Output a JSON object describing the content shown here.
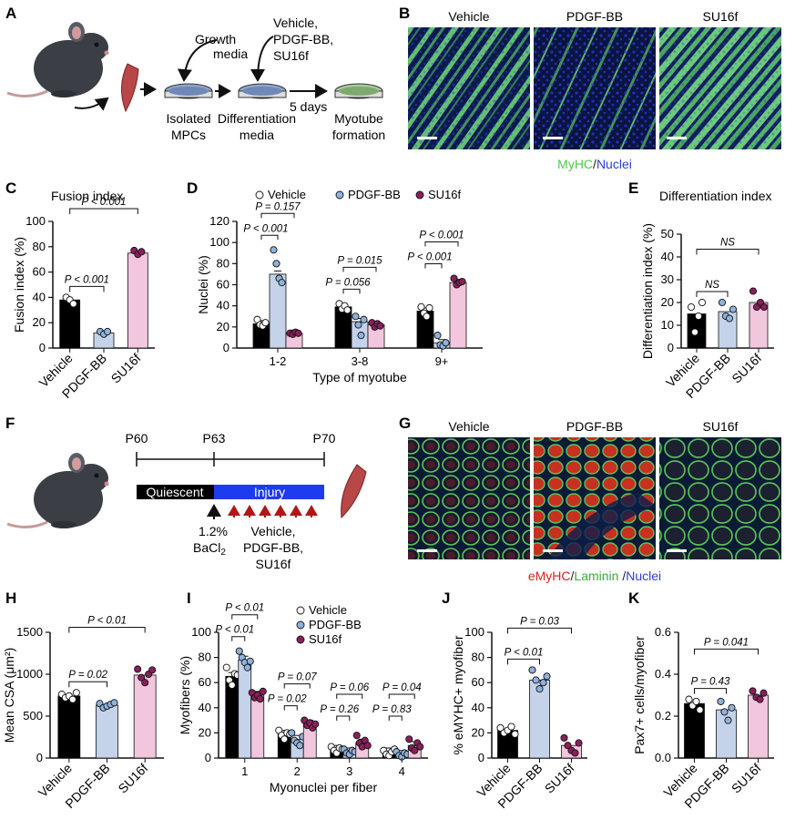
{
  "panels": {
    "A": {
      "letter": "A",
      "growth_media": "Growth media",
      "treatments": [
        "Vehicle,",
        "PDGF-BB,",
        "SU16f"
      ],
      "isolated": [
        "Isolated",
        "MPCs"
      ],
      "differentiation": [
        "Differentiation",
        "media"
      ],
      "days": "5 days",
      "myotube": [
        "Myotube",
        "formation"
      ]
    },
    "B": {
      "letter": "B",
      "image_titles": [
        "Vehicle",
        "PDGF-BB",
        "SU16f"
      ],
      "caption_parts": [
        "MyHC",
        "/",
        "Nuclei"
      ],
      "caption_colors": [
        "#4fc94f",
        "#222222",
        "#2b3fd6"
      ]
    },
    "F": {
      "letter": "F",
      "timepoints": [
        "P60",
        "P63",
        "P70"
      ],
      "quiescent": "Quiescent",
      "injury": "Injury",
      "bacl2": [
        "1.2%",
        "BaCl"
      ],
      "bacl2_sub": "2",
      "treatments": [
        "Vehicle,",
        "PDGF-BB,",
        "SU16f"
      ]
    },
    "G": {
      "letter": "G",
      "image_titles": [
        "Vehicle",
        "PDGF-BB",
        "SU16f"
      ],
      "caption_parts": [
        "eMyHC",
        "/",
        "Laminin",
        " /",
        "Nuclei"
      ],
      "caption_colors": [
        "#e02020",
        "#222222",
        "#3aaa3a",
        "#222222",
        "#2b3fd6"
      ]
    }
  },
  "colors": {
    "vehicle": "#000000",
    "pdgf": "#c5d3ea",
    "su16f": "#f2c6dc",
    "dot_vehicle": "#ffffff",
    "dot_pdgf": "#8fb2dc",
    "dot_su16f": "#8a1f5c"
  },
  "chart_data": [
    {
      "id": "C",
      "letter": "C",
      "type": "bar",
      "title": "Fusion index",
      "ylabel": "Fusion index (%)",
      "ylim": [
        0,
        100
      ],
      "yticks": [
        0,
        20,
        40,
        60,
        80,
        100
      ],
      "categories": [
        "Vehicle",
        "PDGF-BB",
        "SU16f"
      ],
      "values": [
        38,
        12,
        75
      ],
      "points": [
        [
          40,
          38,
          35
        ],
        [
          13,
          11,
          13
        ],
        [
          77,
          74,
          76
        ]
      ],
      "comparisons": [
        {
          "from": 0,
          "to": 1,
          "label": "P < 0.001"
        },
        {
          "from": 0,
          "to": 2,
          "label": "P < 0.001"
        }
      ]
    },
    {
      "id": "D",
      "letter": "D",
      "type": "bar",
      "ylabel": "Nuclei (%)",
      "xlabel": "Type of myotube",
      "ylim": [
        0,
        120
      ],
      "yticks": [
        0,
        20,
        40,
        60,
        80,
        100,
        120
      ],
      "categories": [
        "1-2",
        "3-8",
        "9+"
      ],
      "legend": [
        "Vehicle",
        "PDGF-BB",
        "SU16f"
      ],
      "series": [
        {
          "name": "Vehicle",
          "values": [
            23,
            39,
            35
          ],
          "points": [
            [
              27,
              22,
              21,
              24
            ],
            [
              42,
              37,
              40,
              36
            ],
            [
              39,
              33,
              30,
              38
            ]
          ]
        },
        {
          "name": "PDGF-BB",
          "values": [
            70,
            25,
            5
          ],
          "points": [
            [
              93,
              80,
              66,
              62
            ],
            [
              30,
              22,
              12,
              27
            ],
            [
              12,
              3,
              2,
              5
            ]
          ]
        },
        {
          "name": "SU16f",
          "values": [
            14,
            22,
            62
          ],
          "points": [
            [
              14,
              13,
              15,
              14
            ],
            [
              24,
              20,
              23,
              21
            ],
            [
              66,
              60,
              62,
              63
            ]
          ]
        }
      ],
      "comparisons": [
        {
          "group": 0,
          "from": 0,
          "to": 1,
          "label": "P < 0.001"
        },
        {
          "group": 0,
          "from": 0,
          "to": 2,
          "label": "P = 0.157"
        },
        {
          "group": 1,
          "from": 0,
          "to": 1,
          "label": "P = 0.056"
        },
        {
          "group": 1,
          "from": 0,
          "to": 2,
          "label": "P = 0.015"
        },
        {
          "group": 2,
          "from": 0,
          "to": 1,
          "label": "P < 0.001"
        },
        {
          "group": 2,
          "from": 0,
          "to": 2,
          "label": "P < 0.001"
        }
      ]
    },
    {
      "id": "E",
      "letter": "E",
      "type": "bar",
      "title": "Differentiation index",
      "ylabel": "Differentiation index (%)",
      "ylim": [
        0,
        50
      ],
      "yticks": [
        0,
        10,
        20,
        30,
        40,
        50
      ],
      "categories": [
        "Vehicle",
        "PDGF-BB",
        "SU16f"
      ],
      "values": [
        15,
        16,
        20
      ],
      "points": [
        [
          18,
          7,
          14,
          20
        ],
        [
          20,
          14,
          13,
          17
        ],
        [
          25,
          18,
          20,
          18
        ]
      ],
      "comparisons": [
        {
          "from": 0,
          "to": 1,
          "label": "NS"
        },
        {
          "from": 0,
          "to": 2,
          "label": "NS"
        }
      ]
    },
    {
      "id": "H",
      "letter": "H",
      "type": "bar",
      "ylabel": "Mean CSA (μm²)",
      "ylim": [
        0,
        1500
      ],
      "yticks": [
        0,
        500,
        1000,
        1500
      ],
      "categories": [
        "Vehicle",
        "PDGF-BB",
        "SU16f"
      ],
      "values": [
        740,
        630,
        990
      ],
      "points": [
        [
          760,
          720,
          740,
          700,
          780
        ],
        [
          650,
          600,
          620,
          640,
          660
        ],
        [
          1060,
          960,
          900,
          1000,
          1050
        ]
      ],
      "comparisons": [
        {
          "from": 0,
          "to": 1,
          "label": "P = 0.02"
        },
        {
          "from": 0,
          "to": 2,
          "label": "P < 0.01"
        }
      ]
    },
    {
      "id": "I",
      "letter": "I",
      "type": "bar",
      "ylabel": "Myofibers (%)",
      "xlabel": "Myonuclei per fiber",
      "ylim": [
        0,
        100
      ],
      "yticks": [
        0,
        20,
        40,
        60,
        80,
        100
      ],
      "categories": [
        "1",
        "2",
        "3",
        "4"
      ],
      "legend": [
        "Vehicle",
        "PDGF-BB",
        "SU16f"
      ],
      "series": [
        {
          "name": "Vehicle",
          "values": [
            65,
            19,
            7,
            5
          ],
          "points": [
            [
              72,
              62,
              58,
              67,
              66
            ],
            [
              22,
              18,
              15,
              20,
              19
            ],
            [
              9,
              6,
              4,
              8,
              7
            ],
            [
              6,
              3,
              2,
              5,
              7
            ]
          ]
        },
        {
          "name": "PDGF-BB",
          "values": [
            78,
            15,
            5,
            3
          ],
          "points": [
            [
              85,
              80,
              76,
              72,
              77
            ],
            [
              20,
              14,
              12,
              10,
              17
            ],
            [
              7,
              4,
              3,
              6,
              5
            ],
            [
              5,
              2,
              1,
              4,
              3
            ]
          ]
        },
        {
          "name": "SU16f",
          "values": [
            50,
            27,
            12,
            10
          ],
          "points": [
            [
              52,
              48,
              50,
              47,
              53
            ],
            [
              30,
              26,
              28,
              24,
              27
            ],
            [
              18,
              12,
              9,
              14,
              10
            ],
            [
              15,
              8,
              6,
              12,
              9
            ]
          ]
        }
      ],
      "comparisons": [
        {
          "group": 0,
          "from": 0,
          "to": 1,
          "label": "P < 0.01"
        },
        {
          "group": 0,
          "from": 0,
          "to": 2,
          "label": "P < 0.01"
        },
        {
          "group": 1,
          "from": 0,
          "to": 1,
          "label": "P = 0.02"
        },
        {
          "group": 1,
          "from": 0,
          "to": 2,
          "label": "P = 0.07"
        },
        {
          "group": 2,
          "from": 0,
          "to": 1,
          "label": "P = 0.26"
        },
        {
          "group": 2,
          "from": 0,
          "to": 2,
          "label": "P = 0.06"
        },
        {
          "group": 3,
          "from": 0,
          "to": 1,
          "label": "P = 0.83"
        },
        {
          "group": 3,
          "from": 0,
          "to": 2,
          "label": "P = 0.04"
        }
      ]
    },
    {
      "id": "J",
      "letter": "J",
      "type": "bar",
      "ylabel": "% eMYHC+ myofiber",
      "ylim": [
        0,
        100
      ],
      "yticks": [
        0,
        20,
        40,
        60,
        80,
        100
      ],
      "categories": [
        "Vehicle",
        "PDGF-BB",
        "SU16f"
      ],
      "values": [
        22,
        62,
        10
      ],
      "points": [
        [
          24,
          20,
          22,
          25,
          19
        ],
        [
          70,
          62,
          55,
          60,
          65
        ],
        [
          16,
          10,
          6,
          4,
          12
        ]
      ],
      "comparisons": [
        {
          "from": 0,
          "to": 1,
          "label": "P < 0.01"
        },
        {
          "from": 0,
          "to": 2,
          "label": "P = 0.03"
        }
      ]
    },
    {
      "id": "K",
      "letter": "K",
      "type": "bar",
      "ylabel": "Pax7+ cells/myofiber",
      "ylim": [
        0,
        0.6
      ],
      "yticks": [
        0,
        0.2,
        0.4,
        0.6
      ],
      "ytick_labels": [
        "0.0",
        "0.2",
        "0.4",
        "0.6"
      ],
      "categories": [
        "Vehicle",
        "PDGF-BB",
        "SU16f"
      ],
      "values": [
        0.26,
        0.23,
        0.3
      ],
      "points": [
        [
          0.28,
          0.25,
          0.27,
          0.23
        ],
        [
          0.27,
          0.22,
          0.18,
          0.24
        ],
        [
          0.32,
          0.29,
          0.28,
          0.31
        ]
      ],
      "comparisons": [
        {
          "from": 0,
          "to": 1,
          "label": "P = 0.43"
        },
        {
          "from": 0,
          "to": 2,
          "label": "P = 0.041"
        }
      ]
    }
  ]
}
